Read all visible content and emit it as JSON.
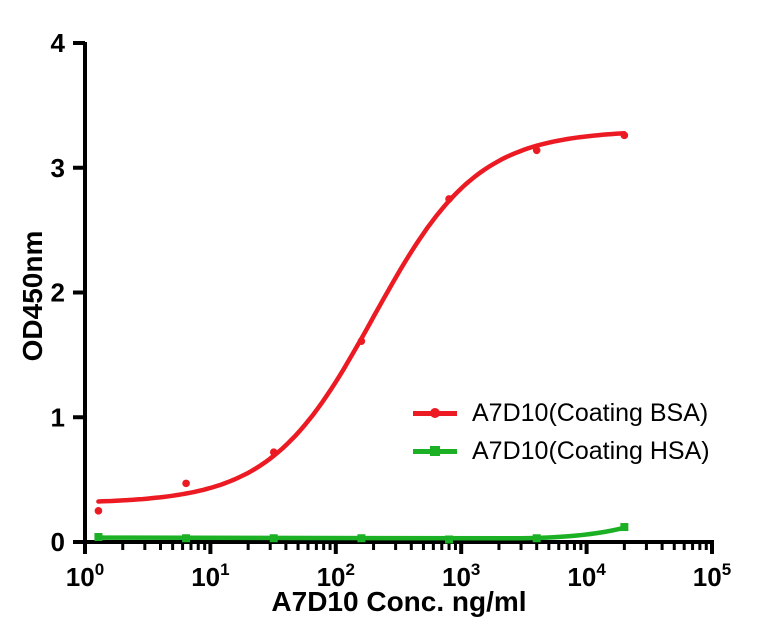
{
  "figure": {
    "background_color": "#ffffff",
    "axis_color": "#000000"
  },
  "chart_data": {
    "type": "scatter-line",
    "title": "",
    "xlabel": "A7D10 Conc. ng/ml",
    "ylabel": "OD450nm",
    "x_scale": "log10",
    "x_tick_exponents": [
      0,
      1,
      2,
      3,
      4,
      5
    ],
    "x_tick_labels": [
      "10^0",
      "10^1",
      "10^2",
      "10^3",
      "10^4",
      "10^5"
    ],
    "x_minor_ticks": true,
    "xlim": [
      1,
      100000
    ],
    "y_ticks": [
      0,
      1,
      2,
      3,
      4
    ],
    "ylim": [
      0,
      4
    ],
    "grid": false,
    "legend_position": "inside-lower-right",
    "x_values": [
      1.28,
      6.4,
      32,
      160,
      800,
      4000,
      20000
    ],
    "series": [
      {
        "name": "A7D10(Coating BSA)",
        "color": "#EC1B23",
        "marker": "circle",
        "values": [
          0.25,
          0.47,
          0.72,
          1.61,
          2.75,
          3.14,
          3.26
        ],
        "fit": {
          "type": "4PL",
          "bottom": 0.31,
          "top": 3.3,
          "ec50": 200,
          "hill": 1.05
        }
      },
      {
        "name": "A7D10(Coating HSA)",
        "color": "#1CB024",
        "marker": "square",
        "values": [
          0.04,
          0.03,
          0.03,
          0.03,
          0.02,
          0.03,
          0.12
        ],
        "curve": {
          "type": "flat-then-rise",
          "start_value": 0.035,
          "flat_value": 0.03,
          "rise_start": 2500,
          "control_x": 9500,
          "end_value": 0.115
        }
      }
    ]
  },
  "legend": {
    "items": [
      {
        "label": "A7D10(Coating BSA)",
        "color": "#EC1B23",
        "marker": "circle"
      },
      {
        "label": "A7D10(Coating HSA)",
        "color": "#1CB024",
        "marker": "square"
      }
    ]
  }
}
